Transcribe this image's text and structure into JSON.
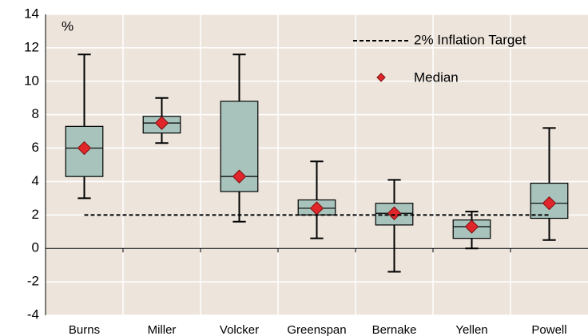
{
  "chart_data": {
    "type": "box",
    "unit_label": "%",
    "categories": [
      "Burns",
      "Miller",
      "Volcker",
      "Greenspan",
      "Bernake",
      "Yellen",
      "Powell"
    ],
    "whisker_high": [
      11.6,
      9.0,
      11.6,
      5.2,
      4.1,
      2.2,
      7.2
    ],
    "q3": [
      7.3,
      7.9,
      8.8,
      2.9,
      2.7,
      1.7,
      3.9
    ],
    "median": [
      6.0,
      7.5,
      4.3,
      2.4,
      2.1,
      1.3,
      2.7
    ],
    "q1": [
      4.3,
      6.9,
      3.4,
      2.0,
      1.4,
      0.6,
      1.8
    ],
    "whisker_low": [
      3.0,
      6.3,
      1.6,
      0.6,
      -1.4,
      0.0,
      0.5
    ],
    "box_color": "#a8c3bc",
    "marker_color": "#e0262a",
    "target": 2,
    "target_label": "2% Inflation Target",
    "median_label": "Median",
    "ylim": [
      -4,
      14
    ],
    "yticks": [
      -4,
      -2,
      0,
      2,
      4,
      6,
      8,
      10,
      12,
      14
    ],
    "grid": true
  }
}
